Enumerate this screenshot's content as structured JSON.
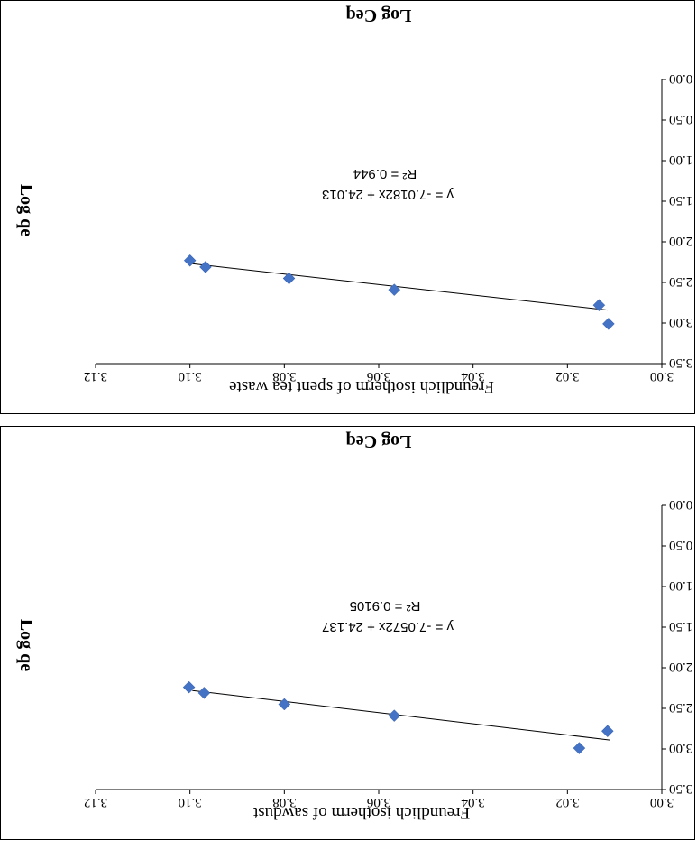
{
  "chart_data": [
    {
      "type": "scatter",
      "title": "Freundlich isotherm of spent tea waste",
      "xlabel": "Log Ceq",
      "ylabel": "Log qe",
      "xlim": [
        3.0,
        3.12
      ],
      "ylim": [
        0.0,
        3.5
      ],
      "x_ticks": [
        "3.00",
        "3.02",
        "3.04",
        "3.06",
        "3.08",
        "3.10",
        "3.12"
      ],
      "y_ticks": [
        "0.00",
        "0.50",
        "1.00",
        "1.50",
        "2.00",
        "2.50",
        "3.00",
        "3.50"
      ],
      "orientation": "rotated 180 degrees",
      "marker_color": "#4472c4",
      "series": [
        {
          "x": [
            3.1,
            3.0967,
            3.079,
            3.0567,
            3.0133,
            3.0113
          ],
          "y": [
            2.23,
            2.31,
            2.45,
            2.59,
            2.78,
            3.01
          ]
        }
      ],
      "trendline": {
        "x1": 3.0995,
        "y1": 2.27,
        "x2": 3.0115,
        "y2": 2.84
      },
      "equation": "y = -7.0182x + 24.013",
      "r2": "R² = 0.944"
    },
    {
      "type": "scatter",
      "title": "Freundlich isotherm of sawdust",
      "xlabel": "Log Ceq",
      "ylabel": "Log qe",
      "xlim": [
        3.0,
        3.12
      ],
      "ylim": [
        0.0,
        3.5
      ],
      "x_ticks": [
        "3.00",
        "3.02",
        "3.04",
        "3.06",
        "3.08",
        "3.10",
        "3.12"
      ],
      "y_ticks": [
        "0.00",
        "0.50",
        "1.00",
        "1.50",
        "2.00",
        "2.50",
        "3.00",
        "3.50"
      ],
      "orientation": "rotated 180 degrees",
      "marker_color": "#4472c4",
      "series": [
        {
          "x": [
            3.1002,
            3.097,
            3.08,
            3.0567,
            3.0175,
            3.0115
          ],
          "y": [
            2.24,
            2.31,
            2.45,
            2.59,
            2.99,
            2.78
          ]
        }
      ],
      "trendline": {
        "x1": 3.0995,
        "y1": 2.28,
        "x2": 3.011,
        "y2": 2.89
      },
      "equation": "y = -7.0572x + 24.137",
      "r2": "R² = 0.9105"
    }
  ]
}
